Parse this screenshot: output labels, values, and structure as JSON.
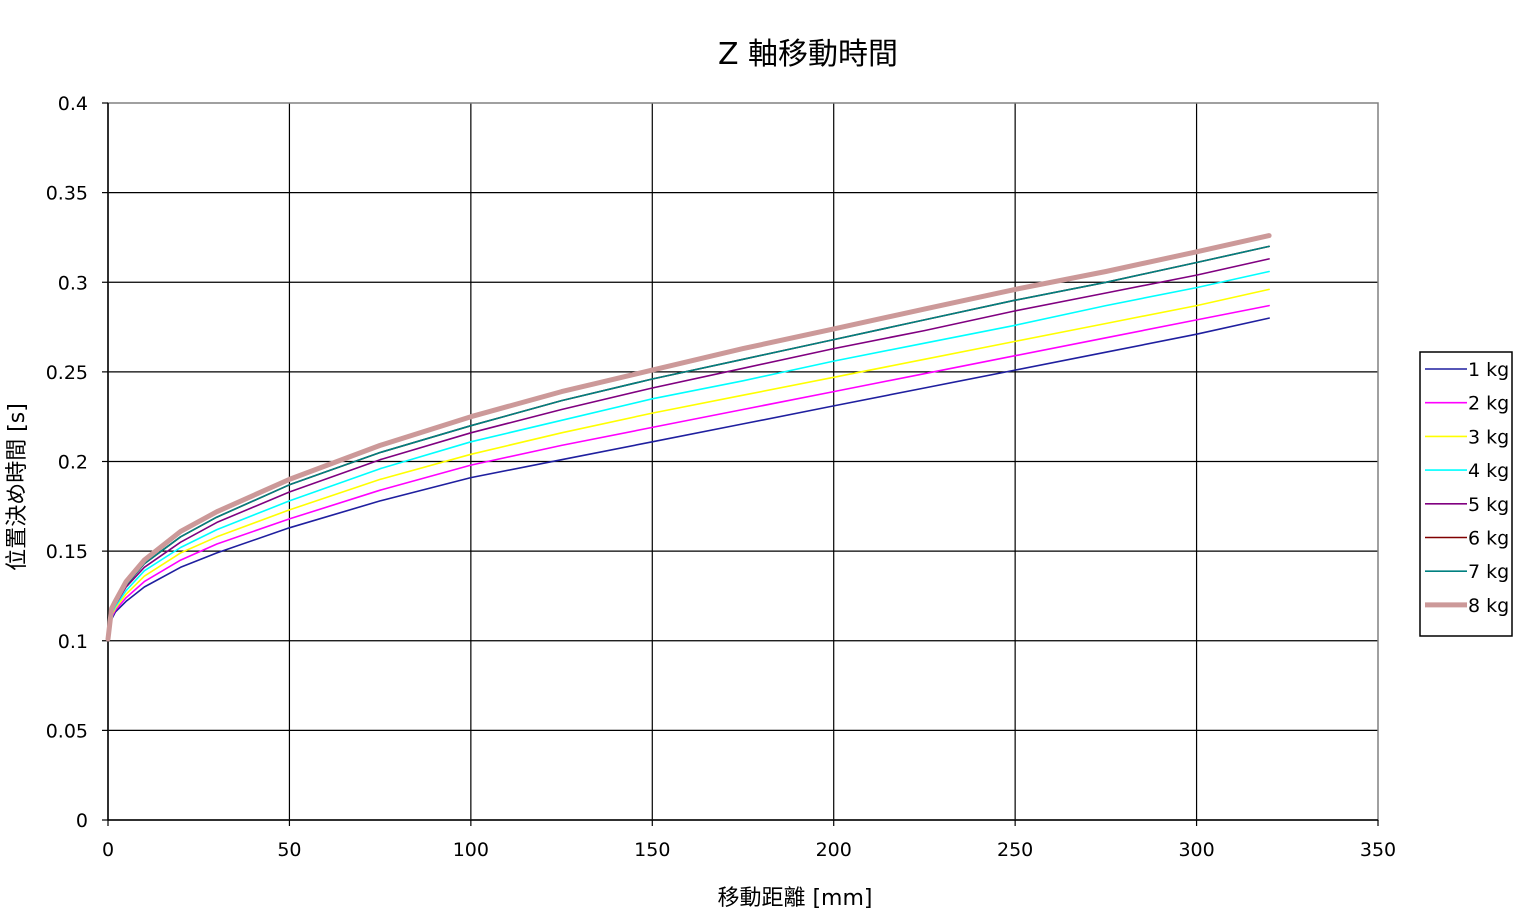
{
  "chart_data": {
    "type": "line",
    "title": "Z 軸移動時間",
    "xlabel": "移動距離 [mm]",
    "ylabel": "位置決め時間 [s]",
    "xlim": [
      0,
      350
    ],
    "ylim": [
      0,
      0.4
    ],
    "x_ticks": [
      "0",
      "50",
      "100",
      "150",
      "200",
      "250",
      "300",
      "350"
    ],
    "y_ticks": [
      "0",
      "0.05",
      "0.1",
      "0.15",
      "0.2",
      "0.25",
      "0.3",
      "0.35",
      "0.4"
    ],
    "grid": true,
    "legend_position": "right",
    "x": [
      0,
      1,
      2,
      5,
      10,
      20,
      30,
      50,
      75,
      100,
      125,
      150,
      175,
      200,
      225,
      250,
      275,
      300,
      320
    ],
    "series": [
      {
        "name": "1 kg",
        "color": "#1f1f9f",
        "emphasis": false,
        "values": [
          0.101,
          0.112,
          0.116,
          0.122,
          0.13,
          0.141,
          0.149,
          0.163,
          0.178,
          0.191,
          0.201,
          0.211,
          0.221,
          0.231,
          0.241,
          0.251,
          0.261,
          0.271,
          0.28
        ]
      },
      {
        "name": "2 kg",
        "color": "#ff00ff",
        "emphasis": false,
        "values": [
          0.101,
          0.113,
          0.117,
          0.124,
          0.133,
          0.145,
          0.154,
          0.168,
          0.184,
          0.198,
          0.209,
          0.219,
          0.229,
          0.239,
          0.249,
          0.259,
          0.269,
          0.279,
          0.287
        ]
      },
      {
        "name": "3 kg",
        "color": "#ffff00",
        "emphasis": false,
        "values": [
          0.101,
          0.114,
          0.118,
          0.126,
          0.136,
          0.149,
          0.158,
          0.173,
          0.19,
          0.204,
          0.216,
          0.227,
          0.237,
          0.247,
          0.257,
          0.267,
          0.277,
          0.287,
          0.296
        ]
      },
      {
        "name": "4 kg",
        "color": "#00ffff",
        "emphasis": false,
        "values": [
          0.101,
          0.115,
          0.119,
          0.128,
          0.139,
          0.152,
          0.162,
          0.178,
          0.196,
          0.211,
          0.223,
          0.235,
          0.245,
          0.256,
          0.266,
          0.276,
          0.287,
          0.297,
          0.306
        ]
      },
      {
        "name": "5 kg",
        "color": "#800080",
        "emphasis": false,
        "values": [
          0.101,
          0.116,
          0.12,
          0.13,
          0.141,
          0.155,
          0.166,
          0.183,
          0.201,
          0.216,
          0.229,
          0.241,
          0.252,
          0.263,
          0.273,
          0.284,
          0.294,
          0.304,
          0.313
        ]
      },
      {
        "name": "6 kg",
        "color": "#800000",
        "emphasis": false,
        "values": [
          0.101,
          0.117,
          0.121,
          0.131,
          0.143,
          0.158,
          0.169,
          0.187,
          0.205,
          0.22,
          0.234,
          0.246,
          0.257,
          0.268,
          0.279,
          0.29,
          0.3,
          0.311,
          0.32
        ]
      },
      {
        "name": "7 kg",
        "color": "#008080",
        "emphasis": false,
        "values": [
          0.101,
          0.117,
          0.121,
          0.131,
          0.143,
          0.158,
          0.169,
          0.187,
          0.205,
          0.22,
          0.234,
          0.246,
          0.257,
          0.268,
          0.279,
          0.29,
          0.3,
          0.311,
          0.32
        ]
      },
      {
        "name": "8 kg",
        "color": "#cc9999",
        "emphasis": true,
        "values": [
          0.101,
          0.118,
          0.122,
          0.133,
          0.145,
          0.161,
          0.172,
          0.19,
          0.209,
          0.225,
          0.239,
          0.251,
          0.263,
          0.274,
          0.285,
          0.296,
          0.306,
          0.317,
          0.326
        ]
      }
    ]
  }
}
